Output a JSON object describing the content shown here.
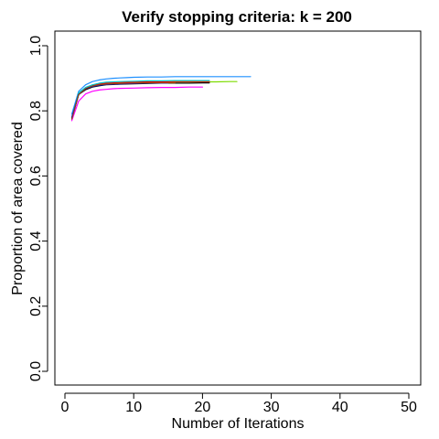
{
  "chart_data": {
    "type": "line",
    "title": "Verify stopping criteria: k = 200",
    "xlabel": "Number of Iterations",
    "ylabel": "Proportion of area covered",
    "xlim": [
      0,
      50
    ],
    "ylim": [
      0,
      1
    ],
    "xticks": [
      0,
      10,
      20,
      30,
      40,
      50
    ],
    "yticks": [
      0.0,
      0.2,
      0.4,
      0.6,
      0.8,
      1.0
    ],
    "xtick_labels": [
      "0",
      "10",
      "20",
      "30",
      "40",
      "50"
    ],
    "ytick_labels": [
      "0.0",
      "0.2",
      "0.4",
      "0.6",
      "0.8",
      "1.0"
    ],
    "grid": false,
    "legend": "none",
    "series": [
      {
        "color": "#1e90ff",
        "x": [
          1,
          2,
          3,
          4,
          5,
          6,
          7,
          8,
          9,
          10,
          12,
          14,
          16,
          18,
          20,
          22,
          24,
          26,
          27
        ],
        "y": [
          0.79,
          0.86,
          0.88,
          0.89,
          0.895,
          0.898,
          0.9,
          0.901,
          0.902,
          0.903,
          0.904,
          0.904,
          0.905,
          0.905,
          0.905,
          0.905,
          0.905,
          0.905,
          0.905
        ]
      },
      {
        "color": "#7cdc00",
        "x": [
          1,
          2,
          3,
          4,
          5,
          6,
          7,
          8,
          10,
          12,
          14,
          16,
          18,
          20,
          22,
          24,
          25
        ],
        "y": [
          0.78,
          0.85,
          0.87,
          0.878,
          0.882,
          0.884,
          0.885,
          0.886,
          0.887,
          0.888,
          0.888,
          0.889,
          0.889,
          0.889,
          0.889,
          0.89,
          0.89
        ]
      },
      {
        "color": "#ff0000",
        "x": [
          1,
          2,
          3,
          4,
          5,
          6,
          7,
          8,
          10,
          12,
          14,
          16,
          18,
          20,
          21
        ],
        "y": [
          0.78,
          0.85,
          0.87,
          0.878,
          0.882,
          0.885,
          0.886,
          0.887,
          0.888,
          0.889,
          0.889,
          0.89,
          0.89,
          0.89,
          0.89
        ]
      },
      {
        "color": "#00c8c8",
        "x": [
          1,
          2,
          3,
          4,
          5,
          6,
          7,
          8,
          10,
          12,
          14,
          16,
          18,
          20,
          21
        ],
        "y": [
          0.78,
          0.855,
          0.872,
          0.88,
          0.885,
          0.888,
          0.889,
          0.89,
          0.891,
          0.892,
          0.892,
          0.893,
          0.893,
          0.893,
          0.893
        ]
      },
      {
        "color": "#000000",
        "x": [
          1,
          2,
          3,
          4,
          5,
          6,
          7,
          8,
          10,
          12,
          14,
          16,
          18,
          20,
          21
        ],
        "y": [
          0.775,
          0.85,
          0.865,
          0.873,
          0.877,
          0.88,
          0.881,
          0.882,
          0.883,
          0.884,
          0.885,
          0.885,
          0.885,
          0.886,
          0.886
        ]
      },
      {
        "color": "#0000ff",
        "x": [
          1,
          2,
          3,
          4,
          5,
          6,
          7,
          8,
          10,
          12,
          14,
          15
        ],
        "y": [
          0.78,
          0.85,
          0.868,
          0.875,
          0.879,
          0.881,
          0.882,
          0.883,
          0.884,
          0.885,
          0.885,
          0.885
        ]
      },
      {
        "color": "#ff00ff",
        "x": [
          1,
          2,
          3,
          4,
          5,
          6,
          7,
          8,
          10,
          12,
          14,
          16,
          18,
          20
        ],
        "y": [
          0.77,
          0.83,
          0.852,
          0.86,
          0.864,
          0.866,
          0.868,
          0.869,
          0.87,
          0.871,
          0.872,
          0.872,
          0.873,
          0.873
        ]
      },
      {
        "color": "#8b4513",
        "x": [
          1,
          2,
          3,
          4,
          5,
          6,
          7,
          8,
          10,
          12,
          14,
          16
        ],
        "y": [
          0.775,
          0.85,
          0.868,
          0.876,
          0.88,
          0.882,
          0.883,
          0.884,
          0.885,
          0.886,
          0.886,
          0.886
        ]
      }
    ]
  }
}
